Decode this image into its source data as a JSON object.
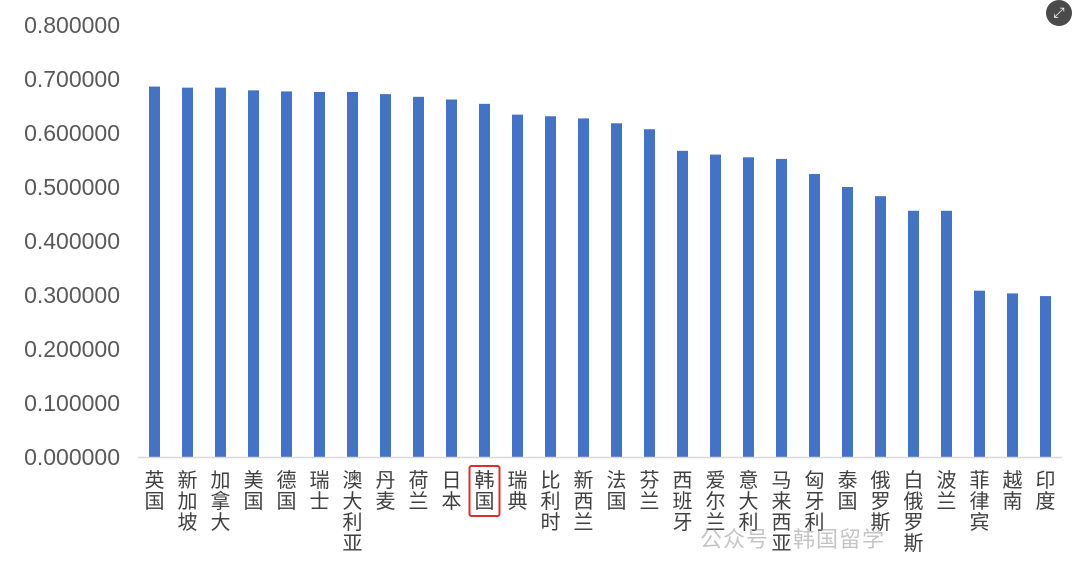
{
  "chart_data": {
    "type": "bar",
    "categories": [
      "英国",
      "新加坡",
      "加拿大",
      "美国",
      "德国",
      "瑞士",
      "澳大利亚",
      "丹麦",
      "荷兰",
      "日本",
      "韩国",
      "瑞典",
      "比利时",
      "新西兰",
      "法国",
      "芬兰",
      "西班牙",
      "爱尔兰",
      "意大利",
      "马来西亚",
      "匈牙利",
      "泰国",
      "俄罗斯",
      "白俄罗斯",
      "波兰",
      "菲律宾",
      "越南",
      "印度"
    ],
    "values": [
      0.686,
      0.684,
      0.684,
      0.679,
      0.677,
      0.676,
      0.676,
      0.672,
      0.667,
      0.662,
      0.654,
      0.634,
      0.631,
      0.627,
      0.618,
      0.607,
      0.567,
      0.56,
      0.555,
      0.552,
      0.524,
      0.5,
      0.483,
      0.456,
      0.456,
      0.308,
      0.303,
      0.298
    ],
    "yticks": [
      "0.000000",
      "0.100000",
      "0.200000",
      "0.300000",
      "0.400000",
      "0.500000",
      "0.600000",
      "0.700000",
      "0.800000"
    ],
    "ylim": [
      0,
      0.8
    ],
    "highlighted_category": "韩国",
    "bar_color": "#4472c4",
    "highlight_box_color": "#d9302c",
    "grid": false,
    "legend": "none"
  },
  "watermark": {
    "text": "公众号 · 韩国留学"
  },
  "corner_icon": {
    "icon": "expand-icon"
  }
}
